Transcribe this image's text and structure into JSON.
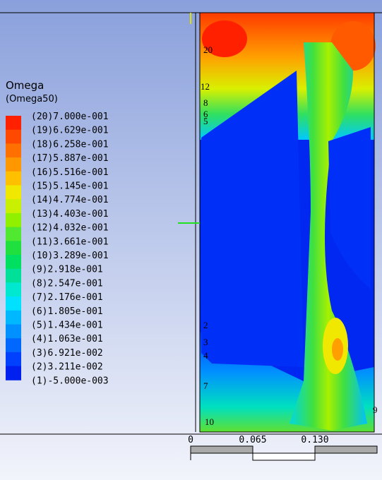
{
  "legend": {
    "title": "Omega",
    "subtitle": "(Omega50)",
    "levels": [
      "(20)7.000e-001",
      "(19)6.629e-001",
      "(18)6.258e-001",
      "(17)5.887e-001",
      "(16)5.516e-001",
      "(15)5.145e-001",
      "(14)4.774e-001",
      "(13)4.403e-001",
      "(12)4.032e-001",
      "(11)3.661e-001",
      "(10)3.289e-001",
      "(9)2.918e-001",
      "(8)2.547e-001",
      "(7)2.176e-001",
      "(6)1.805e-001",
      "(5)1.434e-001",
      "(4)1.063e-001",
      "(3)6.921e-002",
      "(2)3.211e-002",
      "(1)-5.000e-003"
    ]
  },
  "contour_labels": [
    "20",
    "12",
    "8",
    "6",
    "5",
    "2",
    "3",
    "4",
    "7",
    "10",
    "9"
  ],
  "scale": {
    "ticks": [
      "0",
      "0.065",
      "0.130"
    ]
  }
}
